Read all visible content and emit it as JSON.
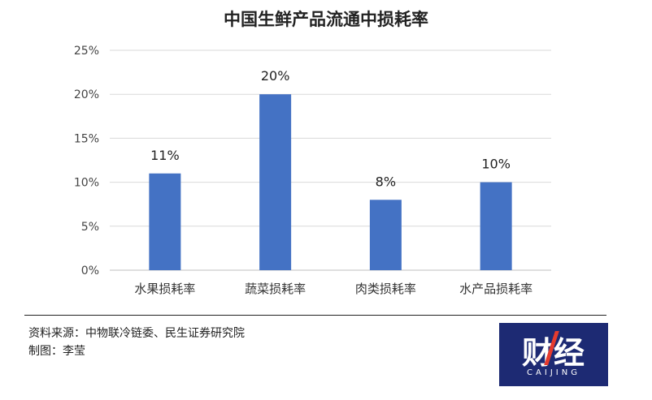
{
  "title": "中国生鲜产品流通中损耗率",
  "source_line": "资料来源：中物联冷链委、民生证券研究院",
  "maker_line": "制图：李莹",
  "logo": {
    "text": "财经",
    "sub": "CAIJING",
    "bg": "#1d2a73",
    "accent": "#e63b2e"
  },
  "chart_data": {
    "type": "bar",
    "title": "中国生鲜产品流通中损耗率",
    "categories": [
      "水果损耗率",
      "蔬菜损耗率",
      "肉类损耗率",
      "水产品损耗率"
    ],
    "values": [
      11,
      20,
      8,
      10
    ],
    "value_labels": [
      "11%",
      "20%",
      "8%",
      "10%"
    ],
    "yticks": [
      "0%",
      "5%",
      "10%",
      "15%",
      "20%",
      "25%"
    ],
    "ylim": [
      0,
      25
    ],
    "ystep": 5,
    "unit": "%",
    "grid": true,
    "bar_color": "#4472c4"
  }
}
